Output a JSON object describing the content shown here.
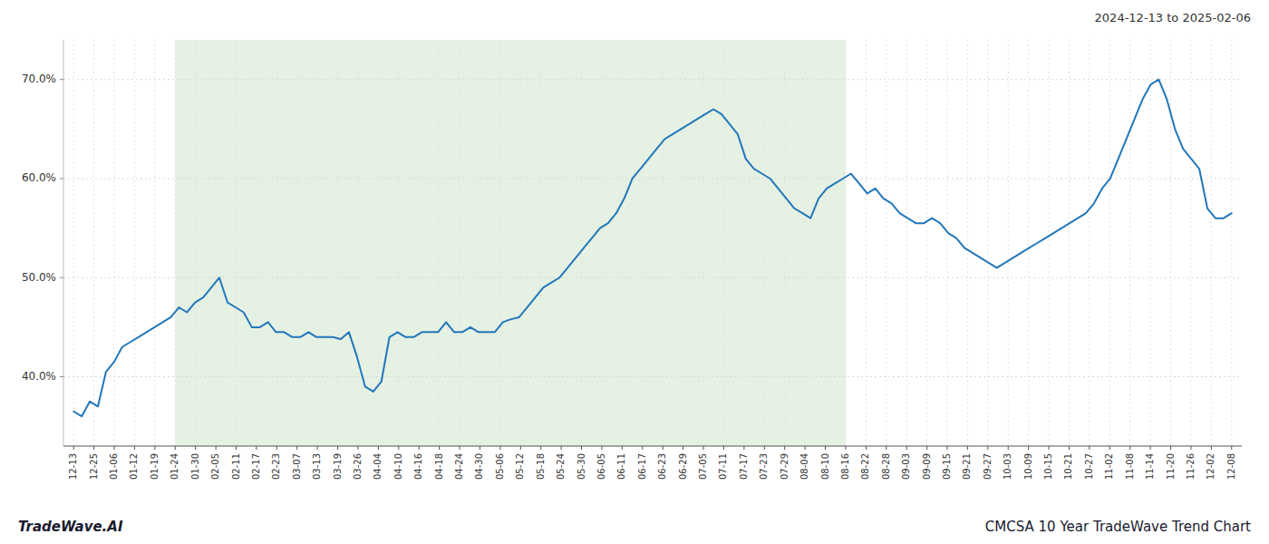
{
  "chart_data": {
    "type": "line",
    "title": "CMCSA 10 Year TradeWave Trend Chart",
    "subtitle": "2024-12-13 to 2025-02-06",
    "annotations": [
      "TradeWave.AI"
    ],
    "xlim": [
      -0.5,
      57.5
    ],
    "xticks": [
      {
        "value": 0,
        "label": "12-13"
      },
      {
        "value": 1,
        "label": "12-25"
      },
      {
        "value": 2,
        "label": "01-06"
      },
      {
        "value": 3,
        "label": "01-12"
      },
      {
        "value": 4,
        "label": "01-19"
      },
      {
        "value": 5,
        "label": "01-24"
      },
      {
        "value": 6,
        "label": "01-30"
      },
      {
        "value": 7,
        "label": "02-05"
      },
      {
        "value": 8,
        "label": "02-11"
      },
      {
        "value": 9,
        "label": "02-17"
      },
      {
        "value": 10,
        "label": "02-23"
      },
      {
        "value": 11,
        "label": "03-07"
      },
      {
        "value": 12,
        "label": "03-13"
      },
      {
        "value": 13,
        "label": "03-19"
      },
      {
        "value": 14,
        "label": "03-26"
      },
      {
        "value": 15,
        "label": "04-04"
      },
      {
        "value": 16,
        "label": "04-10"
      },
      {
        "value": 17,
        "label": "04-16"
      },
      {
        "value": 18,
        "label": "04-18"
      },
      {
        "value": 19,
        "label": "04-24"
      },
      {
        "value": 20,
        "label": "04-30"
      },
      {
        "value": 21,
        "label": "05-06"
      },
      {
        "value": 22,
        "label": "05-12"
      },
      {
        "value": 23,
        "label": "05-18"
      },
      {
        "value": 24,
        "label": "05-24"
      },
      {
        "value": 25,
        "label": "05-30"
      },
      {
        "value": 26,
        "label": "06-05"
      },
      {
        "value": 27,
        "label": "06-11"
      },
      {
        "value": 28,
        "label": "06-17"
      },
      {
        "value": 29,
        "label": "06-23"
      },
      {
        "value": 30,
        "label": "06-29"
      },
      {
        "value": 31,
        "label": "07-05"
      },
      {
        "value": 32,
        "label": "07-11"
      },
      {
        "value": 33,
        "label": "07-17"
      },
      {
        "value": 34,
        "label": "07-23"
      },
      {
        "value": 35,
        "label": "07-29"
      },
      {
        "value": 36,
        "label": "08-04"
      },
      {
        "value": 37,
        "label": "08-10"
      },
      {
        "value": 38,
        "label": "08-16"
      },
      {
        "value": 39,
        "label": "08-22"
      },
      {
        "value": 40,
        "label": "08-28"
      },
      {
        "value": 41,
        "label": "09-03"
      },
      {
        "value": 42,
        "label": "09-09"
      },
      {
        "value": 43,
        "label": "09-15"
      },
      {
        "value": 44,
        "label": "09-21"
      },
      {
        "value": 45,
        "label": "09-27"
      },
      {
        "value": 46,
        "label": "10-03"
      },
      {
        "value": 47,
        "label": "10-09"
      },
      {
        "value": 48,
        "label": "10-15"
      },
      {
        "value": 49,
        "label": "10-21"
      },
      {
        "value": 50,
        "label": "10-27"
      },
      {
        "value": 51,
        "label": "11-02"
      },
      {
        "value": 52,
        "label": "11-08"
      },
      {
        "value": 53,
        "label": "11-14"
      },
      {
        "value": 54,
        "label": "11-20"
      },
      {
        "value": 55,
        "label": "11-26"
      },
      {
        "value": 56,
        "label": "12-02"
      },
      {
        "value": 57,
        "label": "12-08"
      }
    ],
    "ylim": [
      0.33,
      0.74
    ],
    "yticks": [
      {
        "value": 0.4,
        "label": "40.0%"
      },
      {
        "value": 0.5,
        "label": "50.0%"
      },
      {
        "value": 0.6,
        "label": "60.0%"
      },
      {
        "value": 0.7,
        "label": "70.0%"
      }
    ],
    "grid": true,
    "highlight": {
      "x": [
        5,
        38
      ],
      "color": "#d4e8d0"
    },
    "series": [
      {
        "color": "#2277bb",
        "x": [
          0,
          0.3986,
          0.7972,
          1.1958,
          1.5944,
          1.993,
          2.3916,
          2.7902,
          3.1888,
          3.5874,
          3.986,
          4.3846,
          4.7832,
          5.1818,
          5.5804,
          5.979,
          6.3776,
          6.7762,
          7.1748,
          7.5734,
          7.972,
          8.3706,
          8.7692,
          9.1678,
          9.5664,
          9.965,
          10.3636,
          10.7622,
          11.1608,
          11.5594,
          11.958,
          12.3566,
          12.7552,
          13.1538,
          13.5524,
          13.951,
          14.3497,
          14.7483,
          15.1469,
          15.5455,
          15.9441,
          16.3427,
          16.7413,
          17.1399,
          17.5385,
          17.9371,
          18.3357,
          18.7343,
          19.1329,
          19.5315,
          19.9301,
          20.3287,
          20.7273,
          21.1259,
          21.5245,
          21.9231,
          22.3217,
          22.7203,
          23.1189,
          23.5175,
          23.9161,
          24.3147,
          24.7133,
          25.1119,
          25.5105,
          25.9091,
          26.3077,
          26.7063,
          27.1049,
          27.5035,
          27.9021,
          28.3007,
          28.6993,
          29.0979,
          29.4965,
          29.8951,
          30.2937,
          30.6923,
          31.0909,
          31.4895,
          31.8881,
          32.2867,
          32.6853,
          33.0839,
          33.4825,
          33.8811,
          34.2797,
          34.6783,
          35.0769,
          35.4755,
          35.8741,
          36.2727,
          36.6713,
          37.0699,
          37.4685,
          37.8671,
          38.2657,
          38.6643,
          39.0629,
          39.4615,
          39.8601,
          40.2587,
          40.6573,
          41.0559,
          41.4545,
          41.8531,
          42.2517,
          42.6503,
          43.049,
          43.4476,
          43.8462,
          44.2448,
          44.6434,
          45.042,
          45.4406,
          45.8392,
          46.2378,
          46.6364,
          47.035,
          47.4336,
          47.8322,
          48.2308,
          48.6294,
          49.028,
          49.4266,
          49.8252,
          50.2238,
          50.6224,
          51.021,
          51.4196,
          51.8182,
          52.2168,
          52.6154,
          53.014,
          53.4126,
          53.8112,
          54.2098,
          54.6084,
          55.007,
          55.4056,
          55.8042,
          56.2028,
          56.6014,
          57
        ],
        "values": [
          0.365,
          0.36,
          0.375,
          0.37,
          0.405,
          0.415,
          0.43,
          0.435,
          0.44,
          0.445,
          0.45,
          0.455,
          0.46,
          0.47,
          0.465,
          0.475,
          0.48,
          0.49,
          0.5,
          0.475,
          0.47,
          0.465,
          0.45,
          0.45,
          0.455,
          0.445,
          0.445,
          0.44,
          0.44,
          0.445,
          0.44,
          0.44,
          0.44,
          0.438,
          0.445,
          0.42,
          0.39,
          0.385,
          0.395,
          0.44,
          0.445,
          0.44,
          0.44,
          0.445,
          0.445,
          0.445,
          0.455,
          0.445,
          0.445,
          0.45,
          0.445,
          0.445,
          0.445,
          0.455,
          0.458,
          0.46,
          0.47,
          0.48,
          0.49,
          0.495,
          0.5,
          0.51,
          0.52,
          0.53,
          0.54,
          0.55,
          0.555,
          0.565,
          0.58,
          0.6,
          0.61,
          0.62,
          0.63,
          0.64,
          0.645,
          0.65,
          0.655,
          0.66,
          0.665,
          0.67,
          0.665,
          0.655,
          0.645,
          0.62,
          0.61,
          0.605,
          0.6,
          0.59,
          0.58,
          0.57,
          0.565,
          0.56,
          0.58,
          0.59,
          0.595,
          0.6,
          0.605,
          0.595,
          0.585,
          0.59,
          0.58,
          0.575,
          0.565,
          0.56,
          0.555,
          0.555,
          0.56,
          0.555,
          0.545,
          0.54,
          0.53,
          0.525,
          0.52,
          0.515,
          0.51,
          0.515,
          0.52,
          0.525,
          0.53,
          0.535,
          0.54,
          0.545,
          0.55,
          0.555,
          0.56,
          0.565,
          0.575,
          0.59,
          0.6,
          0.62,
          0.64,
          0.66,
          0.68,
          0.695,
          0.7,
          0.68,
          0.65,
          0.63,
          0.62,
          0.61,
          0.57,
          0.56,
          0.56,
          0.565
        ]
      }
    ]
  }
}
